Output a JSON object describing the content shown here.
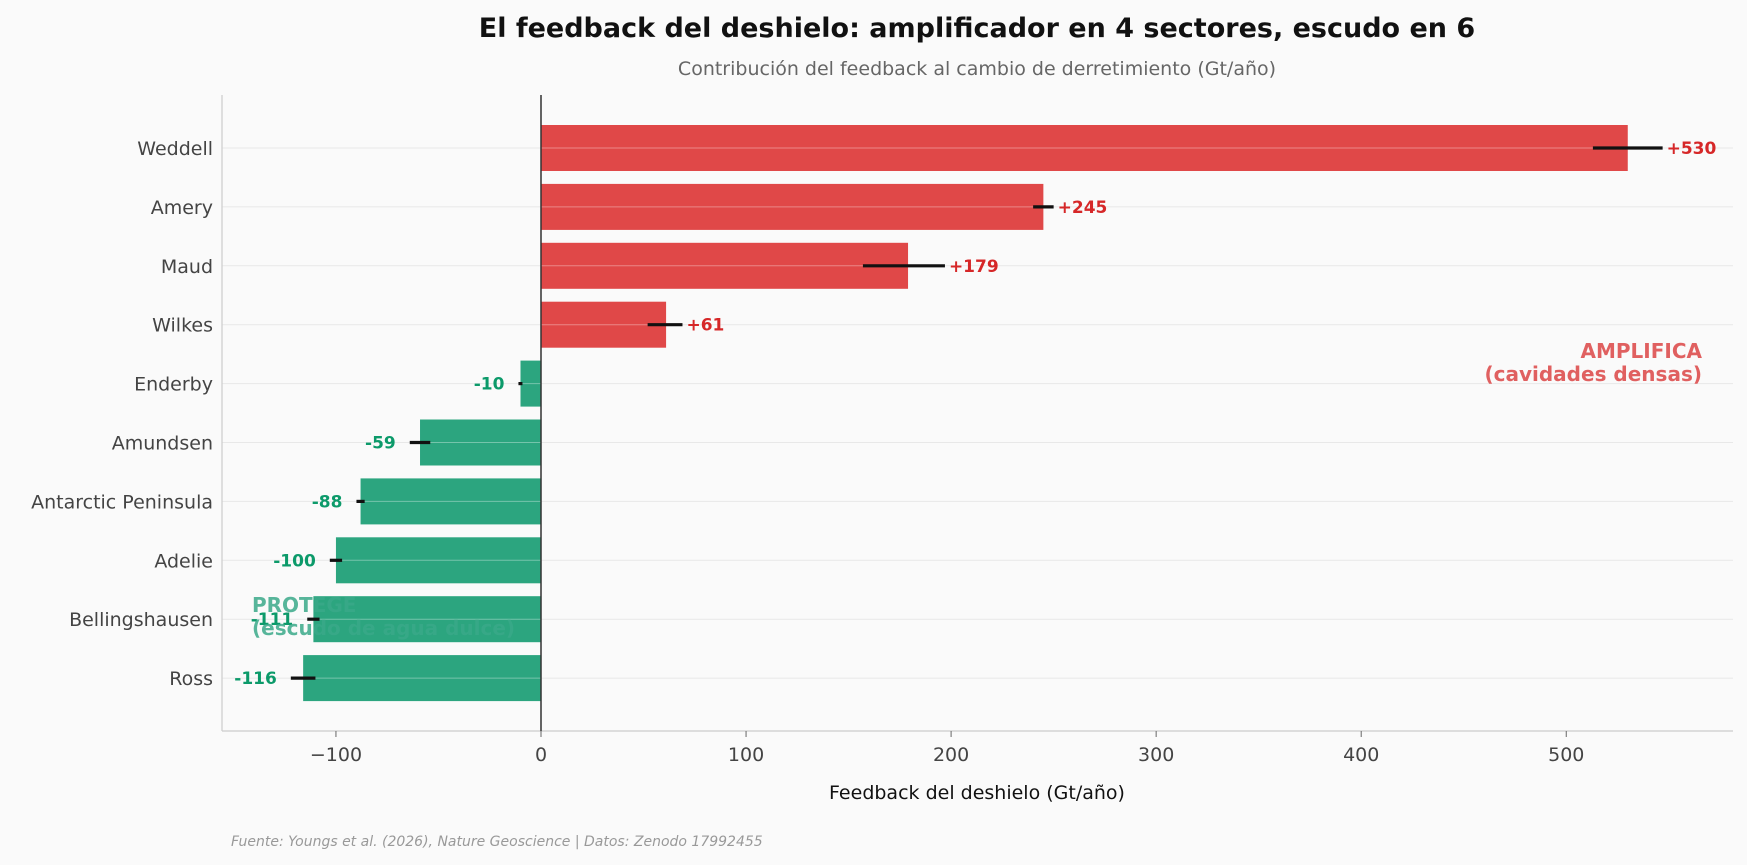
{
  "chart_data": {
    "type": "bar",
    "orientation": "horizontal",
    "title": "El feedback del deshielo: amplificador en 4 sectores, escudo en 6",
    "subtitle": "Contribución del feedback al cambio de derretimiento (Gt/año)",
    "xlabel": "Feedback del deshielo (Gt/año)",
    "ylabel": "",
    "xlim": [
      -155,
      580
    ],
    "xticks": [
      -100,
      0,
      100,
      200,
      300,
      400,
      500
    ],
    "xtick_labels": [
      "−100",
      "0",
      "100",
      "200",
      "300",
      "400",
      "500"
    ],
    "grid": "horizontal",
    "categories": [
      "Weddell",
      "Amery",
      "Maud",
      "Wilkes",
      "Enderby",
      "Amundsen",
      "Antarctic Peninsula",
      "Adelie",
      "Bellingshausen",
      "Ross"
    ],
    "values": [
      530,
      245,
      179,
      61,
      -10,
      -59,
      -88,
      -100,
      -111,
      -116
    ],
    "value_labels": [
      "+530",
      "+245",
      "+179",
      "+61",
      "-10",
      "-59",
      "-88",
      "-100",
      "-111",
      "-116"
    ],
    "error_low": [
      513,
      240,
      157,
      52,
      -11,
      -64,
      -90,
      -103,
      -114,
      -122
    ],
    "error_high": [
      547,
      250,
      197,
      69,
      -10,
      -54,
      -86,
      -97,
      -108,
      -110
    ],
    "annotations": {
      "amplifica_line1": "AMPLIFICA",
      "amplifica_line2": "(cavidades densas)",
      "protege_line1": "PROTEGE",
      "protege_line2": "(escudo de agua dulce)"
    },
    "source": "Fuente: Youngs et al. (2026), Nature Geoscience | Datos: Zenodo 17992455",
    "colors": {
      "positive": "#e04848",
      "negative": "#2ca57f",
      "positive_text": "#d62728",
      "negative_text": "#0c9a6a",
      "amplifica_text": "#e06060",
      "protege_text": "#3aa888"
    }
  }
}
